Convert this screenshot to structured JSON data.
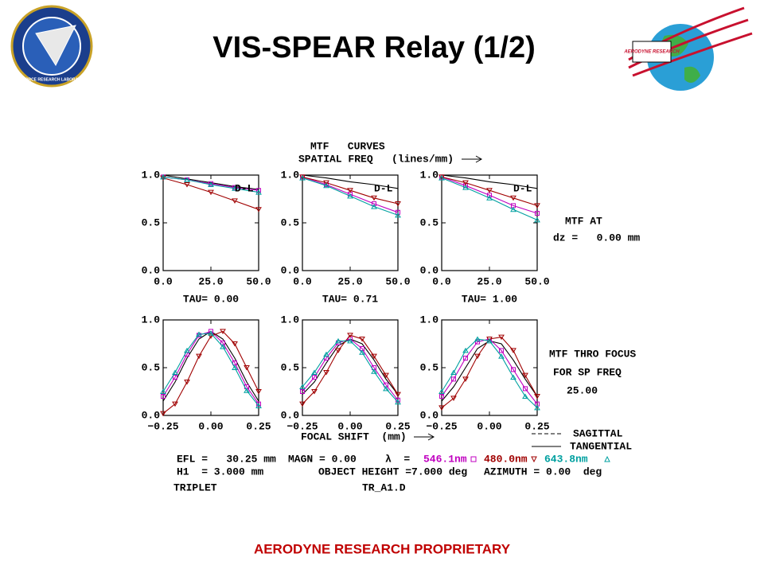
{
  "title": "VIS-SPEAR Relay (1/2)",
  "footer": "AERODYNE RESEARCH PROPRIETARY",
  "logos": {
    "left": "AIR FORCE RESEARCH LABORATORY",
    "right": "AERODYNE RESEARCH"
  },
  "header": [
    "MTF   CURVES",
    "SPATIAL FREQ   (lines/mm)"
  ],
  "side_top": [
    "MTF AT",
    "dz =   0.00 mm"
  ],
  "side_bottom": [
    "MTF THRO FOCUS",
    "FOR SP FREQ",
    "25.00"
  ],
  "focal_label": "FOCAL SHIFT  (mm)",
  "line_legend": [
    "SAGITTAL",
    "TANGENTIAL"
  ],
  "info": {
    "efl": "EFL =   30.25 mm",
    "magn": "MAGN = 0.00",
    "lambda": "λ  =",
    "h1": "H1  = 3.000 mm",
    "object_height": "OBJECT HEIGHT =7.000 deg",
    "azimuth": "AZIMUTH = 0.00  deg",
    "design": "TRIPLET",
    "file": "TR_A1.D"
  },
  "chart_data": [
    {
      "type": "line",
      "caption": "TAU= 0.00",
      "annotation": "D-L",
      "x": [
        0,
        12.5,
        25,
        37.5,
        50
      ],
      "xlim": [
        0,
        50
      ],
      "ylim": [
        0,
        1
      ],
      "xticks": [
        {
          "value": 0,
          "label": "0.0"
        },
        {
          "value": 25,
          "label": "25.0"
        },
        {
          "value": 50,
          "label": "50.0"
        }
      ],
      "yticks": [
        {
          "value": 0,
          "label": "0.0"
        },
        {
          "value": 0.5,
          "label": "0.5"
        },
        {
          "value": 1,
          "label": "1.0"
        }
      ],
      "series": [
        {
          "name": "D-L",
          "color": "#000000",
          "marker": "none",
          "values": [
            1,
            0.96,
            0.92,
            0.88,
            0.85
          ]
        },
        {
          "name": "546.1nm",
          "color": "#c000c0",
          "marker": "square",
          "values": [
            0.98,
            0.95,
            0.91,
            0.87,
            0.84
          ]
        },
        {
          "name": "480.0nm",
          "color": "#a00000",
          "marker": "down",
          "values": [
            0.97,
            0.9,
            0.82,
            0.73,
            0.64
          ]
        },
        {
          "name": "643.8nm",
          "color": "#00a0a0",
          "marker": "up",
          "values": [
            0.98,
            0.95,
            0.9,
            0.86,
            0.82
          ]
        }
      ]
    },
    {
      "type": "line",
      "caption": "TAU= 0.71",
      "annotation": "D-L",
      "x": [
        0,
        12.5,
        25,
        37.5,
        50
      ],
      "xlim": [
        0,
        50
      ],
      "ylim": [
        0,
        1
      ],
      "xticks": [
        {
          "value": 0,
          "label": "0.0"
        },
        {
          "value": 25,
          "label": "25.0"
        },
        {
          "value": 50,
          "label": "50.0"
        }
      ],
      "yticks": [
        {
          "value": 0,
          "label": "0.0"
        },
        {
          "value": 0.5,
          "label": "0.5"
        },
        {
          "value": 1,
          "label": "1.0"
        }
      ],
      "series": [
        {
          "color": "#000000",
          "marker": "none",
          "values": [
            1,
            0.97,
            0.93,
            0.9,
            0.86
          ]
        },
        {
          "color": "#c000c0",
          "marker": "square",
          "values": [
            0.98,
            0.9,
            0.8,
            0.7,
            0.61
          ]
        },
        {
          "color": "#a00000",
          "marker": "down",
          "values": [
            0.98,
            0.92,
            0.84,
            0.76,
            0.7
          ]
        },
        {
          "color": "#00a0a0",
          "marker": "up",
          "values": [
            0.97,
            0.89,
            0.78,
            0.67,
            0.58
          ]
        }
      ]
    },
    {
      "type": "line",
      "caption": "TAU= 1.00",
      "annotation": "D-L",
      "x": [
        0,
        12.5,
        25,
        37.5,
        50
      ],
      "xlim": [
        0,
        50
      ],
      "ylim": [
        0,
        1
      ],
      "xticks": [
        {
          "value": 0,
          "label": "0.0"
        },
        {
          "value": 25,
          "label": "25.0"
        },
        {
          "value": 50,
          "label": "50.0"
        }
      ],
      "yticks": [
        {
          "value": 0,
          "label": "0.0"
        },
        {
          "value": 0.5,
          "label": "0.5"
        },
        {
          "value": 1,
          "label": "1.0"
        }
      ],
      "series": [
        {
          "color": "#000000",
          "marker": "none",
          "values": [
            1,
            0.97,
            0.93,
            0.9,
            0.86
          ]
        },
        {
          "color": "#c000c0",
          "marker": "square",
          "values": [
            0.98,
            0.89,
            0.79,
            0.68,
            0.6
          ]
        },
        {
          "color": "#a00000",
          "marker": "down",
          "values": [
            0.98,
            0.92,
            0.84,
            0.76,
            0.68
          ]
        },
        {
          "color": "#00a0a0",
          "marker": "up",
          "values": [
            0.97,
            0.87,
            0.76,
            0.64,
            0.53
          ]
        }
      ]
    },
    {
      "type": "line",
      "x": [
        -0.25,
        -0.1875,
        -0.125,
        -0.0625,
        0,
        0.0625,
        0.125,
        0.1875,
        0.25
      ],
      "xlim": [
        -0.25,
        0.25
      ],
      "ylim": [
        0,
        1
      ],
      "xticks": [
        {
          "value": -0.25,
          "label": "−0.25"
        },
        {
          "value": 0,
          "label": "0.00"
        },
        {
          "value": 0.25,
          "label": "0.25"
        }
      ],
      "yticks": [
        {
          "value": 0,
          "label": "0.0"
        },
        {
          "value": 0.5,
          "label": "0.5"
        },
        {
          "value": 1,
          "label": "1.0"
        }
      ],
      "series": [
        {
          "color": "#000000",
          "marker": "none",
          "values": [
            0.15,
            0.35,
            0.6,
            0.8,
            0.88,
            0.8,
            0.6,
            0.35,
            0.15
          ]
        },
        {
          "color": "#c000c0",
          "marker": "square",
          "values": [
            0.2,
            0.4,
            0.64,
            0.84,
            0.88,
            0.76,
            0.55,
            0.3,
            0.12
          ]
        },
        {
          "color": "#a00000",
          "marker": "down",
          "values": [
            0.02,
            0.12,
            0.35,
            0.62,
            0.83,
            0.88,
            0.75,
            0.5,
            0.25
          ]
        },
        {
          "color": "#00a0a0",
          "marker": "up",
          "values": [
            0.25,
            0.45,
            0.68,
            0.85,
            0.86,
            0.72,
            0.5,
            0.26,
            0.1
          ]
        }
      ]
    },
    {
      "type": "line",
      "x": [
        -0.25,
        -0.1875,
        -0.125,
        -0.0625,
        0,
        0.0625,
        0.125,
        0.1875,
        0.25
      ],
      "xlim": [
        -0.25,
        0.25
      ],
      "ylim": [
        0,
        1
      ],
      "xticks": [
        {
          "value": -0.25,
          "label": "−0.25"
        },
        {
          "value": 0,
          "label": "0.00"
        },
        {
          "value": 0.25,
          "label": "0.25"
        }
      ],
      "yticks": [
        {
          "value": 0,
          "label": "0.0"
        },
        {
          "value": 0.5,
          "label": "0.5"
        },
        {
          "value": 1,
          "label": "1.0"
        }
      ],
      "series": [
        {
          "color": "#000000",
          "marker": "none",
          "values": [
            0.22,
            0.35,
            0.55,
            0.73,
            0.8,
            0.75,
            0.58,
            0.38,
            0.22
          ]
        },
        {
          "color": "#c000c0",
          "marker": "square",
          "values": [
            0.25,
            0.4,
            0.6,
            0.76,
            0.8,
            0.7,
            0.5,
            0.32,
            0.16
          ]
        },
        {
          "color": "#a00000",
          "marker": "down",
          "values": [
            0.12,
            0.25,
            0.45,
            0.68,
            0.84,
            0.8,
            0.62,
            0.42,
            0.22
          ]
        },
        {
          "color": "#00a0a0",
          "marker": "up",
          "values": [
            0.3,
            0.45,
            0.64,
            0.78,
            0.78,
            0.66,
            0.46,
            0.28,
            0.14
          ]
        }
      ]
    },
    {
      "type": "line",
      "x": [
        -0.25,
        -0.1875,
        -0.125,
        -0.0625,
        0,
        0.0625,
        0.125,
        0.1875,
        0.25
      ],
      "xlim": [
        -0.25,
        0.25
      ],
      "ylim": [
        0,
        1
      ],
      "xticks": [
        {
          "value": -0.25,
          "label": "−0.25"
        },
        {
          "value": 0,
          "label": "0.00"
        },
        {
          "value": 0.25,
          "label": "0.25"
        }
      ],
      "yticks": [
        {
          "value": 0,
          "label": "0.0"
        },
        {
          "value": 0.5,
          "label": "0.5"
        },
        {
          "value": 1,
          "label": "1.0"
        }
      ],
      "series": [
        {
          "color": "#000000",
          "marker": "none",
          "values": [
            0.15,
            0.3,
            0.5,
            0.7,
            0.78,
            0.75,
            0.58,
            0.38,
            0.2
          ]
        },
        {
          "color": "#c000c0",
          "marker": "square",
          "values": [
            0.2,
            0.38,
            0.6,
            0.77,
            0.8,
            0.68,
            0.48,
            0.28,
            0.12
          ]
        },
        {
          "color": "#a00000",
          "marker": "down",
          "values": [
            0.08,
            0.18,
            0.38,
            0.62,
            0.8,
            0.82,
            0.68,
            0.42,
            0.2
          ]
        },
        {
          "color": "#00a0a0",
          "marker": "up",
          "values": [
            0.25,
            0.45,
            0.68,
            0.8,
            0.78,
            0.62,
            0.4,
            0.2,
            0.08
          ]
        }
      ]
    }
  ]
}
